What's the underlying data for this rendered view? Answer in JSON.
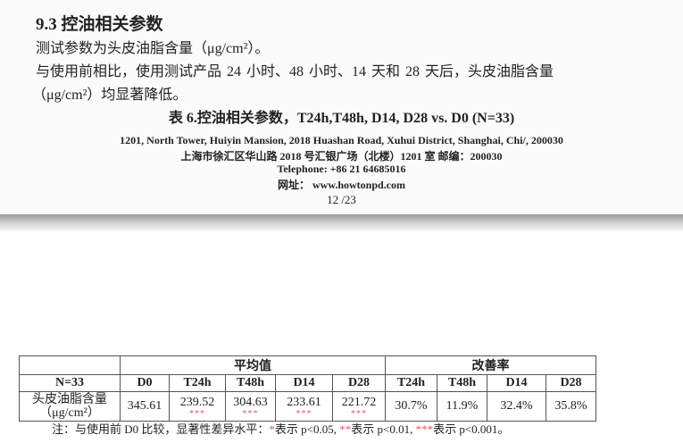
{
  "section_title": "9.3 控油相关参数",
  "para1": "测试参数为头皮油脂含量（μg/cm²）。",
  "para2": "与使用前相比，使用测试产品 24 小时、48 小时、14 天和 28 天后，头皮油脂含量",
  "para3": "（μg/cm²）均显著降低。",
  "table_caption": "表 6.控油相关参数，T24h,T48h, D14, D28 vs. D0 (N=33)",
  "footer": {
    "address_en": "1201, North Tower, Huiyin Mansion, 2018 Huashan Road, Xuhui District, Shanghai, Chi/, 200030",
    "address_cn": "上海市徐汇区华山路 2018 号汇银广场（北楼）1201 室  邮编：200030",
    "telephone": "Telephone: +86 21 64685016",
    "website": "网址： www.howtonpd.com",
    "page": "12 /23"
  },
  "table": {
    "group_mean": "平均值",
    "group_improve": "改善率",
    "n_label": "N=33",
    "mean_cols": [
      "D0",
      "T24h",
      "T48h",
      "D14",
      "D28"
    ],
    "improve_cols": [
      "T24h",
      "T48h",
      "D14",
      "D28"
    ],
    "row_label_1": "头皮油脂含量",
    "row_label_2": "（μg/cm²）",
    "means": [
      "345.61",
      "239.52",
      "304.63",
      "233.61",
      "221.72"
    ],
    "sig": [
      "",
      "***",
      "***",
      "***",
      "***"
    ],
    "improve": [
      "30.7%",
      "11.9%",
      "32.4%",
      "35.8%"
    ]
  },
  "note": {
    "prefix": "注：与使用前 D0 比较，显著性差异水平：",
    "s1": "*",
    "t1": "表示 p<0.05, ",
    "s2": "**",
    "t2": "表示 p<0.01, ",
    "s3": "***",
    "t3": "表示 p<0.001。"
  },
  "colors": {
    "significance_star": "#e05a70"
  }
}
